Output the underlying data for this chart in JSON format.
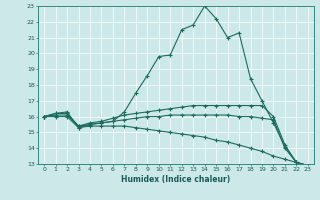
{
  "xlabel": "Humidex (Indice chaleur)",
  "bg_color": "#cde8e8",
  "line_color": "#1a6b5e",
  "grid_color": "#b0d4d4",
  "xlim": [
    -0.5,
    23.5
  ],
  "ylim": [
    13,
    23
  ],
  "yticks": [
    13,
    14,
    15,
    16,
    17,
    18,
    19,
    20,
    21,
    22,
    23
  ],
  "xticks": [
    0,
    1,
    2,
    3,
    4,
    5,
    6,
    7,
    8,
    9,
    10,
    11,
    12,
    13,
    14,
    15,
    16,
    17,
    18,
    19,
    20,
    21,
    22,
    23
  ],
  "lines": [
    {
      "x": [
        0,
        1,
        2,
        3,
        4,
        5,
        6,
        7,
        8,
        9,
        10,
        11,
        12,
        13,
        14,
        15,
        16,
        17,
        18,
        19,
        20,
        21,
        22,
        23
      ],
      "y": [
        16.0,
        16.2,
        16.3,
        15.3,
        15.5,
        15.6,
        15.7,
        16.3,
        17.5,
        18.6,
        19.8,
        19.9,
        21.5,
        21.8,
        23.0,
        22.2,
        21.0,
        21.3,
        18.4,
        17.0,
        15.6,
        14.1,
        13.1,
        12.9
      ]
    },
    {
      "x": [
        0,
        1,
        2,
        3,
        4,
        5,
        6,
        7,
        8,
        9,
        10,
        11,
        12,
        13,
        14,
        15,
        16,
        17,
        18,
        19,
        20,
        21,
        22,
        23
      ],
      "y": [
        16.0,
        16.2,
        16.2,
        15.4,
        15.6,
        15.7,
        15.9,
        16.1,
        16.2,
        16.3,
        16.4,
        16.5,
        16.6,
        16.7,
        16.7,
        16.7,
        16.7,
        16.7,
        16.7,
        16.7,
        16.0,
        14.2,
        13.1,
        12.9
      ]
    },
    {
      "x": [
        0,
        1,
        2,
        3,
        4,
        5,
        6,
        7,
        8,
        9,
        10,
        11,
        12,
        13,
        14,
        15,
        16,
        17,
        18,
        19,
        20,
        21,
        22,
        23
      ],
      "y": [
        16.0,
        16.1,
        16.1,
        15.4,
        15.5,
        15.6,
        15.7,
        15.8,
        15.9,
        16.0,
        16.0,
        16.1,
        16.1,
        16.1,
        16.1,
        16.1,
        16.1,
        16.0,
        16.0,
        15.9,
        15.8,
        14.0,
        13.1,
        12.9
      ]
    },
    {
      "x": [
        0,
        1,
        2,
        3,
        4,
        5,
        6,
        7,
        8,
        9,
        10,
        11,
        12,
        13,
        14,
        15,
        16,
        17,
        18,
        19,
        20,
        21,
        22,
        23
      ],
      "y": [
        16.0,
        16.0,
        16.0,
        15.3,
        15.4,
        15.4,
        15.4,
        15.4,
        15.3,
        15.2,
        15.1,
        15.0,
        14.9,
        14.8,
        14.7,
        14.5,
        14.4,
        14.2,
        14.0,
        13.8,
        13.5,
        13.3,
        13.1,
        12.9
      ]
    }
  ]
}
